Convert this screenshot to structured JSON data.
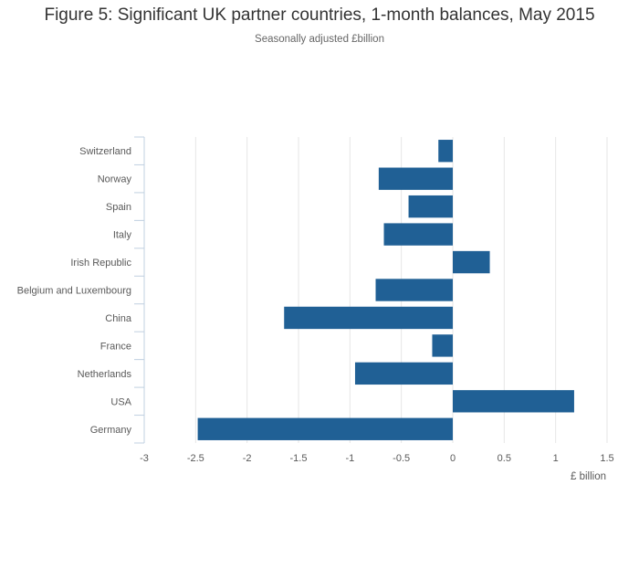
{
  "title": "Figure 5: Significant UK partner countries, 1-month balances, May 2015",
  "subtitle": "Seasonally adjusted £billion",
  "colors": {
    "bar": "#206095",
    "grid": "#e6e6e6",
    "axis": "#c0d0e0"
  },
  "chart_data": {
    "type": "bar",
    "orientation": "horizontal",
    "title": "Figure 5: Significant UK partner countries, 1-month balances, May 2015",
    "subtitle": "Seasonally adjusted £billion",
    "xlabel": "£ billion",
    "ylabel": "",
    "xlim": [
      -3,
      1.5
    ],
    "xticks": [
      -3,
      -2.5,
      -2,
      -1.5,
      -1,
      -0.5,
      0,
      0.5,
      1,
      1.5
    ],
    "xtick_labels": [
      "-3",
      "-2.5",
      "-2",
      "-1.5",
      "-1",
      "-0.5",
      "0",
      "0.5",
      "1",
      "1.5"
    ],
    "grid": true,
    "categories": [
      "Switzerland",
      "Norway",
      "Spain",
      "Italy",
      "Irish Republic",
      "Belgium and Luxembourg",
      "China",
      "France",
      "Netherlands",
      "USA",
      "Germany"
    ],
    "values": [
      -0.14,
      -0.72,
      -0.43,
      -0.67,
      0.36,
      -0.75,
      -1.64,
      -0.2,
      -0.95,
      1.18,
      -2.48
    ]
  }
}
